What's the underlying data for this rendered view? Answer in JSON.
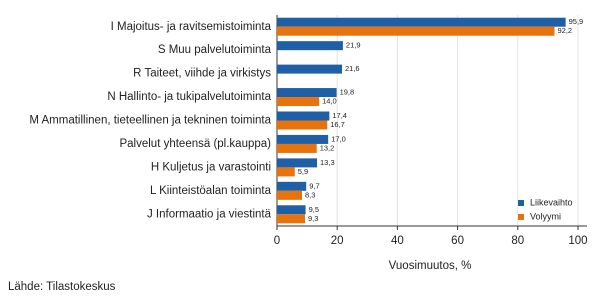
{
  "chart_data": {
    "type": "bar",
    "orientation": "horizontal",
    "categories": [
      "I Majoitus- ja ravitsemistoiminta",
      "S Muu palvelutoiminta",
      "R Taiteet, viihde ja virkistys",
      "N Hallinto- ja tukipalvelutoiminta",
      "M Ammatillinen, tieteellinen ja tekninen toiminta",
      "Palvelut yhteensä (pl.kauppa)",
      "H Kuljetus ja varastointi",
      "L Kiinteistöalan toiminta",
      "J Informaatio ja viestintä"
    ],
    "series": [
      {
        "name": "Liikevaihto",
        "color": "#1f5fa8",
        "values": [
          95.9,
          21.9,
          21.6,
          19.8,
          17.4,
          17.0,
          13.3,
          9.7,
          9.5
        ],
        "value_labels": [
          "95,9",
          "21,9",
          "21,6",
          "19,8",
          "17,4",
          "17,0",
          "13,3",
          "9,7",
          "9,5"
        ]
      },
      {
        "name": "Volyymi",
        "color": "#e8720c",
        "values": [
          92.2,
          null,
          null,
          14.0,
          16.7,
          13.2,
          5.9,
          8.3,
          9.3
        ],
        "value_labels": [
          "92,2",
          null,
          null,
          "14,0",
          "16,7",
          "13,2",
          "5,9",
          "8,3",
          "9,3"
        ]
      }
    ],
    "xlim": [
      0,
      103
    ],
    "xticks": [
      0,
      20,
      40,
      60,
      80,
      100
    ],
    "grid": true,
    "xlabel": "Vuosimuutos, %",
    "legend": "lower right",
    "source": "Lähde: Tilastokeskus"
  }
}
